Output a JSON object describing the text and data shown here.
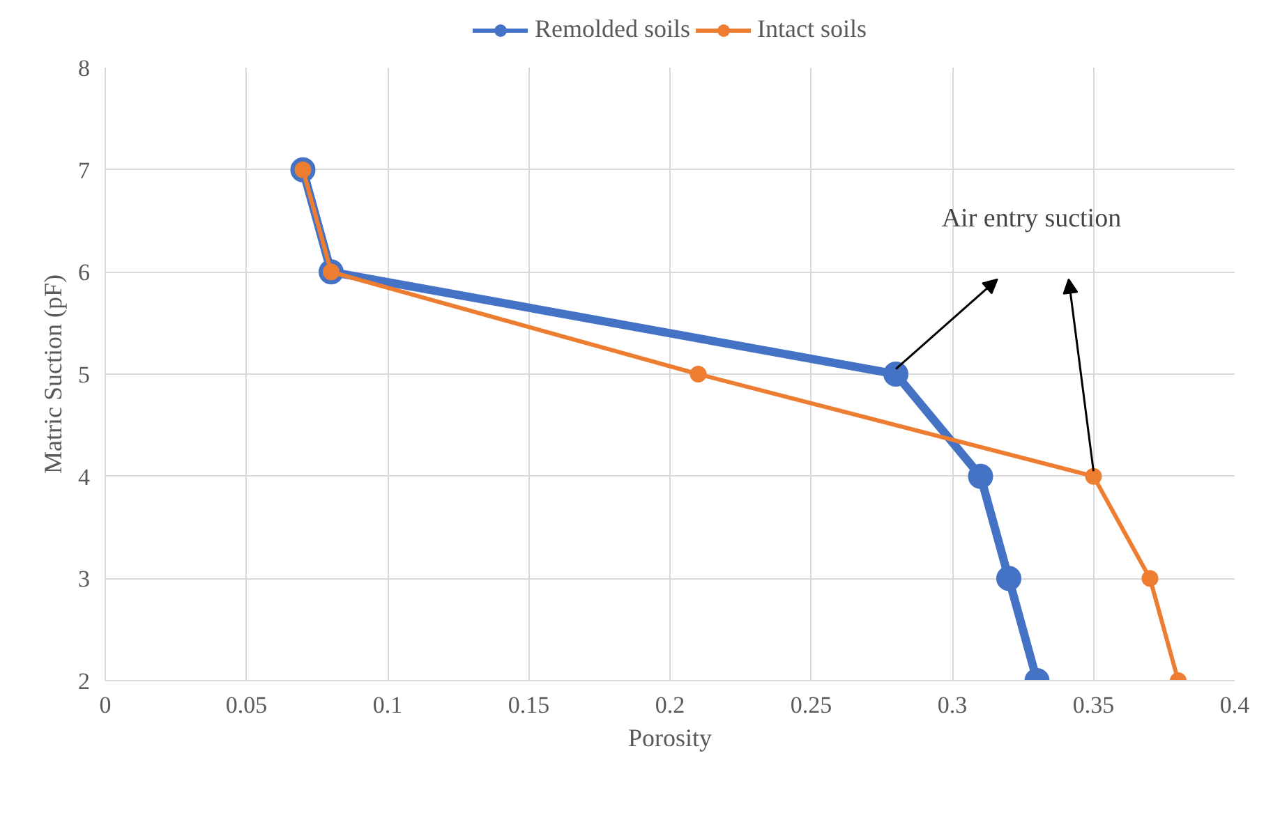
{
  "chart_data": {
    "type": "line",
    "xlabel": "Porosity",
    "ylabel": "Matric Suction (pF)",
    "xlim": [
      0,
      0.4
    ],
    "xticks": [
      0,
      0.05,
      0.1,
      0.15,
      0.2,
      0.25,
      0.3,
      0.35,
      0.4
    ],
    "ylim": [
      2,
      8
    ],
    "yticks": [
      2,
      3,
      4,
      5,
      6,
      7,
      8
    ],
    "series": [
      {
        "name": "Remolded soils",
        "color": "#4472c4",
        "x": [
          0.33,
          0.32,
          0.31,
          0.28,
          0.08,
          0.07
        ],
        "values": [
          2,
          3,
          4,
          5,
          6,
          7
        ]
      },
      {
        "name": "Intact soils",
        "color": "#ed7d31",
        "x": [
          0.38,
          0.37,
          0.35,
          0.21,
          0.08,
          0.07
        ],
        "values": [
          2,
          3,
          4,
          5,
          6,
          7
        ]
      }
    ],
    "annotations": [
      "Air entry suction"
    ],
    "grid": true,
    "legend": "top",
    "marker": "circle",
    "line_style": "solid"
  }
}
